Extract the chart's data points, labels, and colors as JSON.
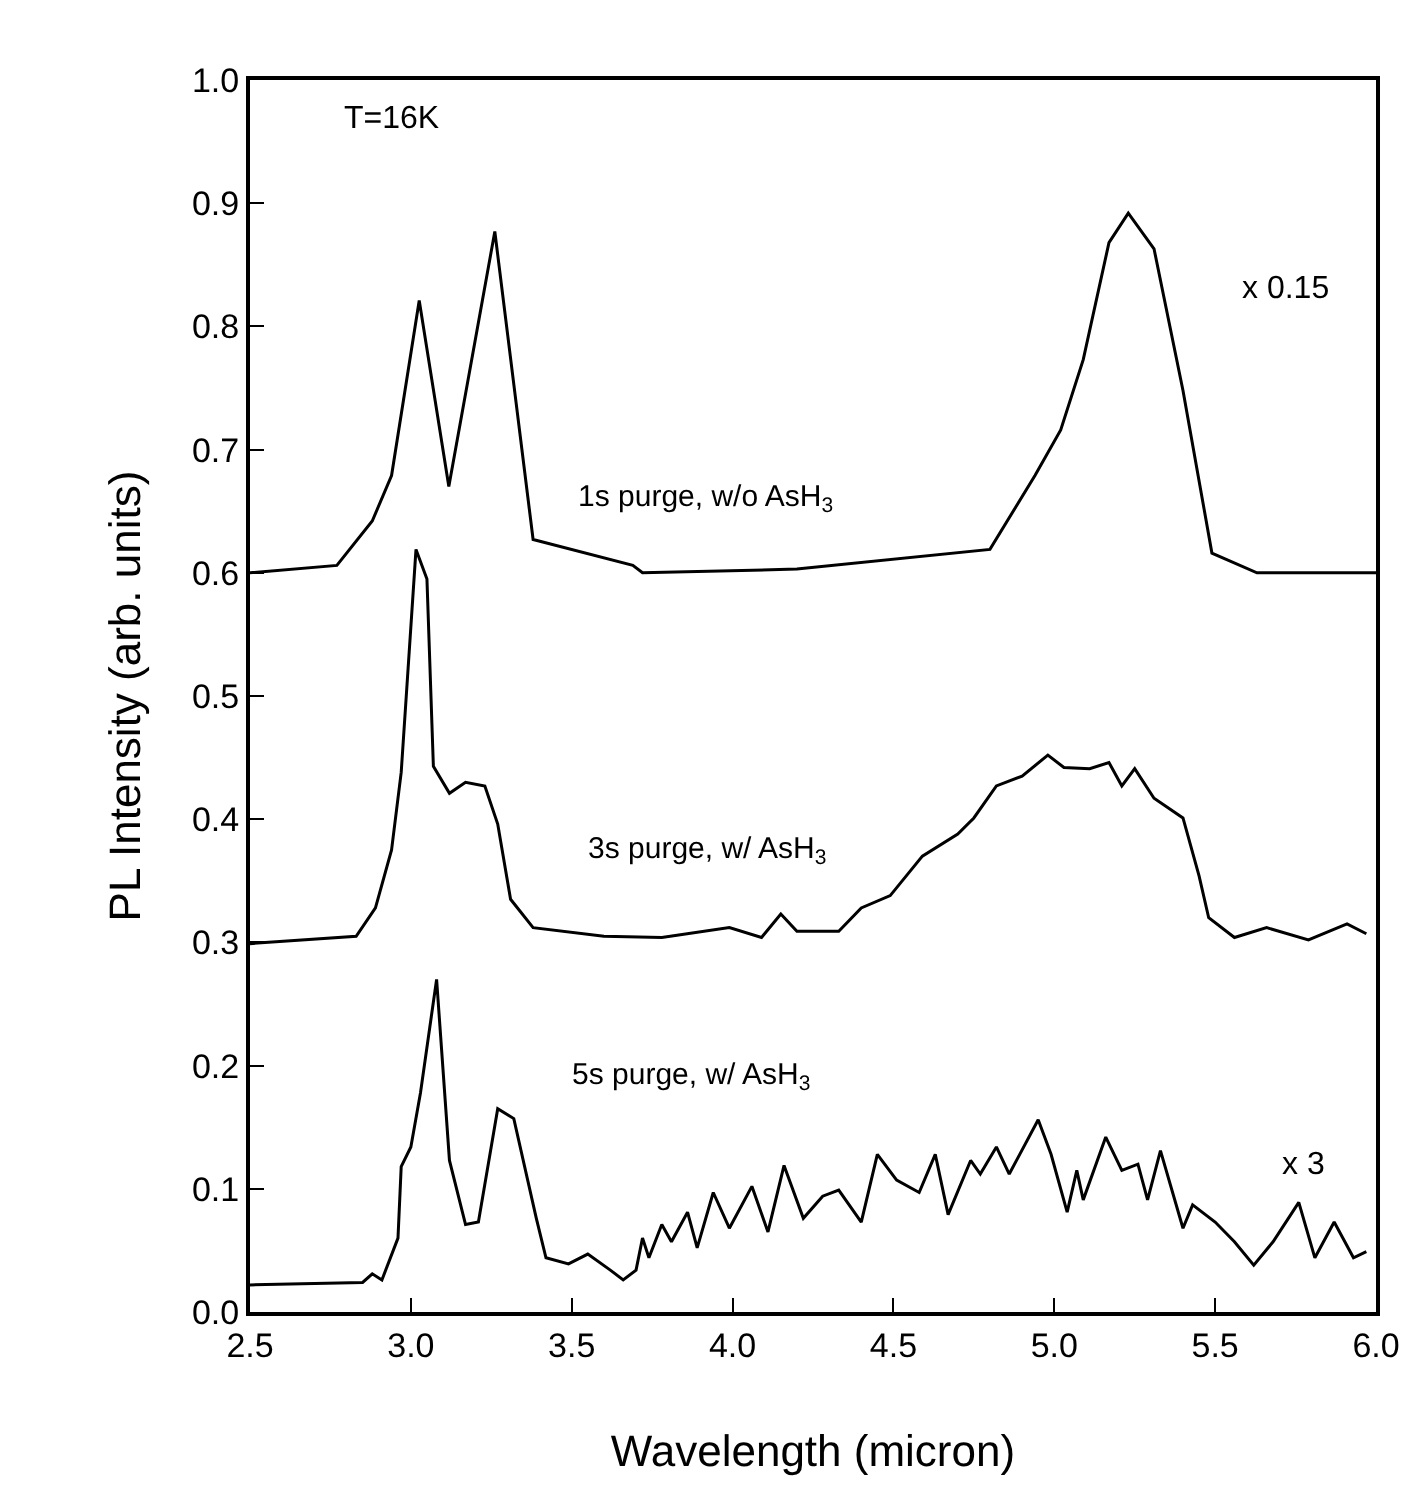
{
  "chart_data": {
    "type": "line",
    "xlabel": "Wavelength (micron)",
    "ylabel": "PL Intensity (arb. units)",
    "annotations": [
      "T=16K",
      "x 0.15",
      "x 3"
    ],
    "xlim": [
      2.5,
      6.0
    ],
    "xticks": [
      {
        "value": 2.5,
        "label": "2.5"
      },
      {
        "value": 3.0,
        "label": "3.0"
      },
      {
        "value": 3.5,
        "label": "3.5"
      },
      {
        "value": 4.0,
        "label": "4.0"
      },
      {
        "value": 4.5,
        "label": "4.5"
      },
      {
        "value": 5.0,
        "label": "5.0"
      },
      {
        "value": 5.5,
        "label": "5.5"
      },
      {
        "value": 6.0,
        "label": "6.0"
      }
    ],
    "ylim": [
      0.0,
      1.0
    ],
    "yticks": [
      {
        "value": 0.0,
        "label": "0.0"
      },
      {
        "value": 0.1,
        "label": "0.1"
      },
      {
        "value": 0.2,
        "label": "0.2"
      },
      {
        "value": 0.3,
        "label": "0.3"
      },
      {
        "value": 0.4,
        "label": "0.4"
      },
      {
        "value": 0.5,
        "label": "0.5"
      },
      {
        "value": 0.6,
        "label": "0.6"
      },
      {
        "value": 0.7,
        "label": "0.7"
      },
      {
        "value": 0.8,
        "label": "0.8"
      },
      {
        "value": 0.9,
        "label": "0.9"
      },
      {
        "value": 1.0,
        "label": "1.0"
      }
    ],
    "grid": false,
    "legend": false,
    "marker": "none",
    "line_style": "solid",
    "series": [
      {
        "name": "1s purge, w/o AsH$_{3}$",
        "color": "#000000",
        "x": [
          2.5,
          2.77,
          2.88,
          2.94,
          3.026,
          3.118,
          3.261,
          3.38,
          3.69,
          3.72,
          4.2,
          4.8,
          4.94,
          5.02,
          5.09,
          5.17,
          5.23,
          5.31,
          5.4,
          5.49,
          5.63,
          6.0
        ],
        "values": [
          0.6,
          0.606,
          0.642,
          0.679,
          0.821,
          0.67,
          0.877,
          0.627,
          0.606,
          0.6,
          0.603,
          0.619,
          0.679,
          0.716,
          0.773,
          0.868,
          0.892,
          0.863,
          0.748,
          0.616,
          0.6,
          0.6
        ]
      },
      {
        "name": "3s purge, w/ AsH$_{3}$",
        "color": "#000000",
        "x": [
          2.5,
          2.83,
          2.89,
          2.94,
          2.97,
          3.016,
          3.05,
          3.07,
          3.12,
          3.17,
          3.23,
          3.27,
          3.31,
          3.38,
          3.6,
          3.78,
          3.99,
          4.09,
          4.15,
          4.2,
          4.33,
          4.4,
          4.49,
          4.59,
          4.7,
          4.75,
          4.82,
          4.9,
          4.98,
          5.03,
          5.11,
          5.17,
          5.21,
          5.25,
          5.31,
          5.4,
          5.45,
          5.48,
          5.56,
          5.66,
          5.79,
          5.91,
          5.97
        ],
        "values": [
          0.299,
          0.305,
          0.328,
          0.375,
          0.438,
          0.619,
          0.595,
          0.443,
          0.421,
          0.43,
          0.427,
          0.396,
          0.335,
          0.312,
          0.305,
          0.304,
          0.312,
          0.304,
          0.323,
          0.309,
          0.309,
          0.328,
          0.338,
          0.37,
          0.388,
          0.401,
          0.427,
          0.435,
          0.452,
          0.442,
          0.441,
          0.446,
          0.427,
          0.441,
          0.417,
          0.401,
          0.354,
          0.32,
          0.304,
          0.312,
          0.302,
          0.315,
          0.307
        ]
      },
      {
        "name": "5s purge, w/ AsH$_{3}$",
        "color": "#000000",
        "x": [
          2.5,
          2.85,
          2.88,
          2.91,
          2.96,
          2.97,
          3.0,
          3.03,
          3.08,
          3.12,
          3.17,
          3.21,
          3.27,
          3.32,
          3.39,
          3.42,
          3.49,
          3.55,
          3.62,
          3.66,
          3.7,
          3.72,
          3.74,
          3.78,
          3.81,
          3.86,
          3.89,
          3.94,
          3.99,
          4.06,
          4.11,
          4.16,
          4.22,
          4.28,
          4.33,
          4.4,
          4.45,
          4.51,
          4.58,
          4.63,
          4.67,
          4.74,
          4.77,
          4.82,
          4.86,
          4.95,
          4.99,
          5.04,
          5.07,
          5.09,
          5.16,
          5.21,
          5.26,
          5.29,
          5.33,
          5.4,
          5.43,
          5.5,
          5.56,
          5.62,
          5.68,
          5.76,
          5.81,
          5.87,
          5.93,
          5.97
        ],
        "values": [
          0.022,
          0.024,
          0.031,
          0.026,
          0.06,
          0.118,
          0.134,
          0.178,
          0.27,
          0.123,
          0.071,
          0.073,
          0.165,
          0.157,
          0.076,
          0.044,
          0.039,
          0.047,
          0.034,
          0.026,
          0.034,
          0.06,
          0.044,
          0.071,
          0.057,
          0.081,
          0.052,
          0.097,
          0.068,
          0.102,
          0.065,
          0.119,
          0.076,
          0.094,
          0.099,
          0.073,
          0.128,
          0.107,
          0.097,
          0.128,
          0.079,
          0.123,
          0.112,
          0.134,
          0.112,
          0.156,
          0.128,
          0.081,
          0.115,
          0.091,
          0.142,
          0.115,
          0.12,
          0.091,
          0.131,
          0.068,
          0.087,
          0.073,
          0.057,
          0.038,
          0.057,
          0.089,
          0.044,
          0.073,
          0.044,
          0.049
        ]
      }
    ]
  }
}
